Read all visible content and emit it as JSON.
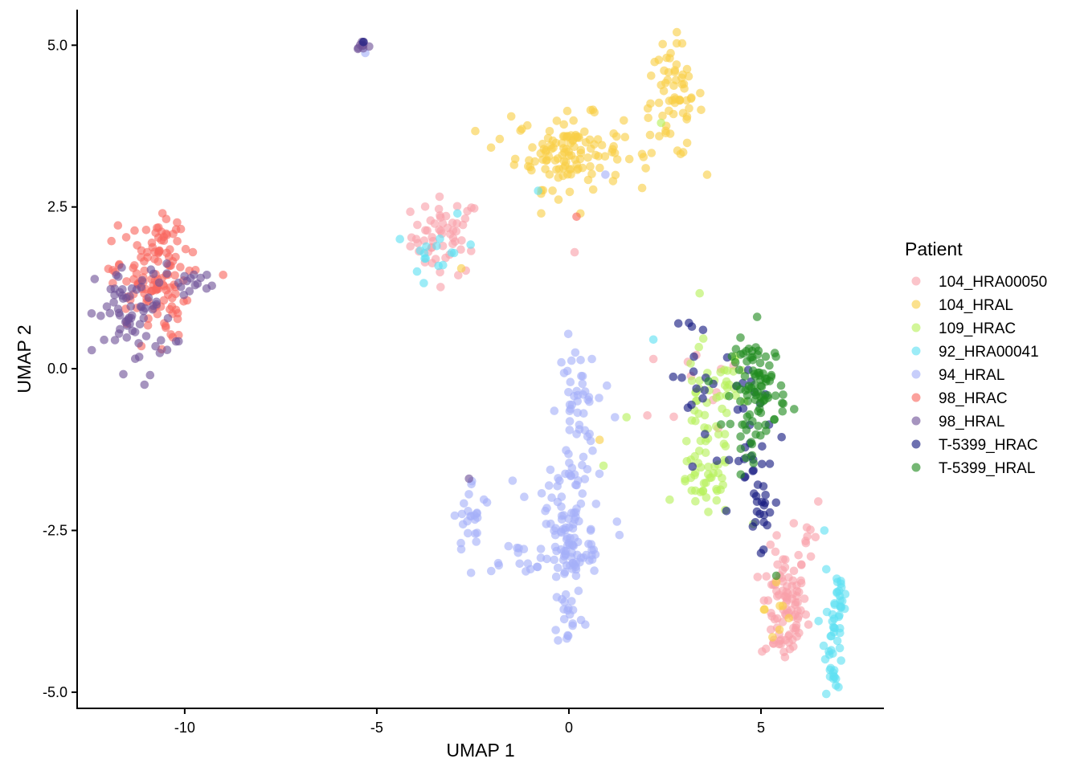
{
  "chart_data": {
    "type": "scatter",
    "title": "",
    "xlabel": "UMAP 1",
    "ylabel": "UMAP 2",
    "xlim": [
      -12.8,
      8.2
    ],
    "ylim": [
      -5.25,
      5.55
    ],
    "x_ticks": [
      -10,
      -5,
      0,
      5
    ],
    "x_tick_labels": [
      "-10",
      "-5",
      "0",
      "5"
    ],
    "y_ticks": [
      5.0,
      2.5,
      0.0,
      -2.5,
      -5.0
    ],
    "y_tick_labels": [
      "5.0",
      "2.5",
      "0.0",
      "-2.5",
      "-5.0"
    ],
    "grid": false,
    "legend": {
      "title": "Patient",
      "position": "right"
    },
    "series": [
      {
        "name": "104_HRA00050",
        "color": "#F8A0AA",
        "clusters": [
          {
            "cx": -3.2,
            "cy": 2.05,
            "sx": 0.45,
            "sy": 0.3,
            "n": 55
          },
          {
            "cx": 5.6,
            "cy": -3.7,
            "sx": 0.3,
            "sy": 0.45,
            "n": 95
          },
          {
            "cx": 4.0,
            "cy": -0.3,
            "sx": 0.9,
            "sy": 0.5,
            "n": 10
          },
          {
            "cx": 6.2,
            "cy": -2.5,
            "sx": 0.2,
            "sy": 0.3,
            "n": 10
          }
        ],
        "points": [
          [
            0.15,
            1.8
          ],
          [
            2.2,
            0.15
          ]
        ]
      },
      {
        "name": "104_HRAL",
        "color": "#F9CE47",
        "clusters": [
          {
            "cx": 0.0,
            "cy": 3.35,
            "sx": 0.7,
            "sy": 0.28,
            "n": 120
          },
          {
            "cx": 2.7,
            "cy": 4.15,
            "sx": 0.4,
            "sy": 0.45,
            "n": 65
          },
          {
            "cx": 5.5,
            "cy": -3.7,
            "sx": 0.2,
            "sy": 0.3,
            "n": 6
          }
        ],
        "points": [
          [
            -1.5,
            3.9
          ],
          [
            -1.8,
            3.55
          ],
          [
            2.0,
            3.1
          ],
          [
            0.3,
            2.4
          ],
          [
            -2.8,
            1.55
          ],
          [
            0.8,
            -1.1
          ],
          [
            5.3,
            -4.15
          ],
          [
            5.4,
            -3.3
          ]
        ]
      },
      {
        "name": "109_HRAC",
        "color": "#B6F05A",
        "clusters": [
          {
            "cx": 3.6,
            "cy": -0.8,
            "sx": 0.45,
            "sy": 0.6,
            "n": 40
          },
          {
            "cx": 3.55,
            "cy": -1.8,
            "sx": 0.35,
            "sy": 0.25,
            "n": 35
          },
          {
            "cx": 4.2,
            "cy": -0.3,
            "sx": 0.4,
            "sy": 0.2,
            "n": 15
          }
        ],
        "points": [
          [
            2.4,
            3.8
          ],
          [
            1.5,
            -0.75
          ],
          [
            0.9,
            -1.5
          ],
          [
            4.8,
            -2.4
          ]
        ]
      },
      {
        "name": "92_HRA00041",
        "color": "#5FE0F2",
        "clusters": [
          {
            "cx": -3.4,
            "cy": 1.75,
            "sx": 0.35,
            "sy": 0.25,
            "n": 15
          },
          {
            "cx": 6.9,
            "cy": -4.2,
            "sx": 0.12,
            "sy": 0.4,
            "n": 35
          },
          {
            "cx": 7.05,
            "cy": -3.6,
            "sx": 0.1,
            "sy": 0.2,
            "n": 18
          }
        ],
        "points": [
          [
            -0.8,
            2.75
          ],
          [
            -2.9,
            2.4
          ],
          [
            2.2,
            0.45
          ],
          [
            6.65,
            -2.5
          ],
          [
            6.7,
            -3.1
          ],
          [
            6.5,
            -3.9
          ]
        ]
      },
      {
        "name": "94_HRAL",
        "color": "#A4B0F8",
        "clusters": [
          {
            "cx": 0.2,
            "cy": -0.7,
            "sx": 0.25,
            "sy": 0.55,
            "n": 50
          },
          {
            "cx": 0.0,
            "cy": -2.8,
            "sx": 0.35,
            "sy": 0.35,
            "n": 65
          },
          {
            "cx": 0.0,
            "cy": -3.8,
            "sx": 0.2,
            "sy": 0.25,
            "n": 20
          },
          {
            "cx": -2.5,
            "cy": -2.3,
            "sx": 0.25,
            "sy": 0.3,
            "n": 25
          },
          {
            "cx": -0.3,
            "cy": -1.8,
            "sx": 0.4,
            "sy": 0.3,
            "n": 25
          },
          {
            "cx": 0.6,
            "cy": -2.6,
            "sx": 0.3,
            "sy": 0.3,
            "n": 15
          },
          {
            "cx": -1.3,
            "cy": -2.9,
            "sx": 0.5,
            "sy": 0.12,
            "n": 15
          }
        ],
        "points": [
          [
            -5.3,
            4.88
          ],
          [
            0.6,
            0.15
          ],
          [
            0.95,
            3.0
          ],
          [
            1.2,
            -0.75
          ],
          [
            -1.0,
            -3.1
          ]
        ]
      },
      {
        "name": "98_HRAC",
        "color": "#F8675F",
        "clusters": [
          {
            "cx": -10.9,
            "cy": 1.35,
            "sx": 0.5,
            "sy": 0.45,
            "n": 120
          },
          {
            "cx": -10.5,
            "cy": 2.1,
            "sx": 0.2,
            "sy": 0.08,
            "n": 10
          }
        ],
        "points": [
          [
            0.2,
            2.35
          ],
          [
            -9.0,
            1.45
          ],
          [
            -10.6,
            0.3
          ]
        ]
      },
      {
        "name": "98_HRAL",
        "color": "#6F5398",
        "clusters": [
          {
            "cx": -11.3,
            "cy": 0.8,
            "sx": 0.5,
            "sy": 0.4,
            "n": 70
          },
          {
            "cx": -9.8,
            "cy": 1.35,
            "sx": 0.35,
            "sy": 0.1,
            "n": 15
          },
          {
            "cx": -5.4,
            "cy": 5.0,
            "sx": 0.06,
            "sy": 0.03,
            "n": 8
          }
        ],
        "points": [
          [
            -10.9,
            -0.1
          ],
          [
            -2.6,
            -1.7
          ],
          [
            -5.2,
            4.98
          ]
        ]
      },
      {
        "name": "T-5399_HRAC",
        "color": "#14187F",
        "clusters": [
          {
            "cx": 4.75,
            "cy": -1.6,
            "sx": 0.3,
            "sy": 0.45,
            "n": 25
          },
          {
            "cx": 5.05,
            "cy": -2.2,
            "sx": 0.12,
            "sy": 0.25,
            "n": 12
          },
          {
            "cx": 3.4,
            "cy": -0.1,
            "sx": 0.4,
            "sy": 0.45,
            "n": 15
          },
          {
            "cx": 4.6,
            "cy": -0.5,
            "sx": 0.3,
            "sy": 0.3,
            "n": 10
          }
        ],
        "points": [
          [
            2.85,
            0.7
          ],
          [
            3.2,
            0.65
          ],
          [
            5.0,
            -2.85
          ],
          [
            4.1,
            -2.2
          ],
          [
            -5.35,
            5.05
          ]
        ]
      },
      {
        "name": "T-5399_HRAL",
        "color": "#208B1F",
        "clusters": [
          {
            "cx": 4.95,
            "cy": -0.25,
            "sx": 0.35,
            "sy": 0.35,
            "n": 80
          },
          {
            "cx": 4.7,
            "cy": -1.0,
            "sx": 0.25,
            "sy": 0.3,
            "n": 15
          }
        ],
        "points": [
          [
            4.9,
            0.8
          ],
          [
            5.4,
            -3.2
          ]
        ]
      }
    ]
  }
}
